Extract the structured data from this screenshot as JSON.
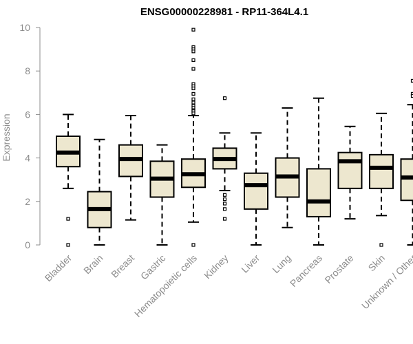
{
  "chart_data": {
    "type": "boxplot",
    "title": "ENSG00000228981 - RP11-364L4.1",
    "xlabel": "",
    "ylabel": "Expression",
    "ylim": [
      0,
      10
    ],
    "yticks": [
      0,
      2,
      4,
      6,
      8,
      10
    ],
    "colors": {
      "box_fill": "#ede7cf",
      "stroke": "#000000",
      "axis": "#8c8c8c"
    },
    "categories": [
      "Bladder",
      "Brain",
      "Breast",
      "Gastric",
      "Hematopoietic cells",
      "Kidney",
      "Liver",
      "Lung",
      "Pancreas",
      "Prostate",
      "Skin",
      "Unknown / Other"
    ],
    "series": [
      {
        "name": "Bladder",
        "whisker_low": 2.6,
        "q1": 3.6,
        "median": 4.25,
        "q3": 5.0,
        "whisker_high": 6.0,
        "outliers": [
          1.2,
          0.0
        ]
      },
      {
        "name": "Brain",
        "whisker_low": 0.0,
        "q1": 0.8,
        "median": 1.65,
        "q3": 2.45,
        "whisker_high": 4.85,
        "outliers": []
      },
      {
        "name": "Breast",
        "whisker_low": 1.15,
        "q1": 3.15,
        "median": 3.95,
        "q3": 4.6,
        "whisker_high": 5.95,
        "outliers": []
      },
      {
        "name": "Gastric",
        "whisker_low": 0.0,
        "q1": 2.2,
        "median": 3.05,
        "q3": 3.85,
        "whisker_high": 4.6,
        "outliers": []
      },
      {
        "name": "Hematopoietic cells",
        "whisker_low": 1.05,
        "q1": 2.65,
        "median": 3.25,
        "q3": 3.95,
        "whisker_high": 5.95,
        "outliers": [
          9.9,
          9.1,
          9.0,
          8.9,
          8.5,
          8.1,
          7.4,
          7.3,
          7.2,
          6.95,
          6.7,
          6.55,
          6.4,
          6.3,
          6.2,
          6.15,
          6.05,
          0.0
        ]
      },
      {
        "name": "Kidney",
        "whisker_low": 2.5,
        "q1": 3.5,
        "median": 3.95,
        "q3": 4.45,
        "whisker_high": 5.15,
        "outliers": [
          6.75,
          2.3,
          2.1,
          1.9,
          1.65,
          1.2
        ]
      },
      {
        "name": "Liver",
        "whisker_low": 0.0,
        "q1": 1.65,
        "median": 2.75,
        "q3": 3.3,
        "whisker_high": 5.15,
        "outliers": []
      },
      {
        "name": "Lung",
        "whisker_low": 0.8,
        "q1": 2.2,
        "median": 3.15,
        "q3": 4.0,
        "whisker_high": 6.3,
        "outliers": []
      },
      {
        "name": "Pancreas",
        "whisker_low": 0.0,
        "q1": 1.3,
        "median": 2.0,
        "q3": 3.5,
        "whisker_high": 6.75,
        "outliers": []
      },
      {
        "name": "Prostate",
        "whisker_low": 1.2,
        "q1": 2.6,
        "median": 3.85,
        "q3": 4.25,
        "whisker_high": 5.45,
        "outliers": []
      },
      {
        "name": "Skin",
        "whisker_low": 1.35,
        "q1": 2.6,
        "median": 3.55,
        "q3": 4.15,
        "whisker_high": 6.05,
        "outliers": [
          0.0
        ]
      },
      {
        "name": "Unknown / Other",
        "whisker_low": 0.0,
        "q1": 2.05,
        "median": 3.1,
        "q3": 3.95,
        "whisker_high": 6.45,
        "outliers": [
          7.55,
          6.95,
          6.85
        ]
      }
    ]
  }
}
